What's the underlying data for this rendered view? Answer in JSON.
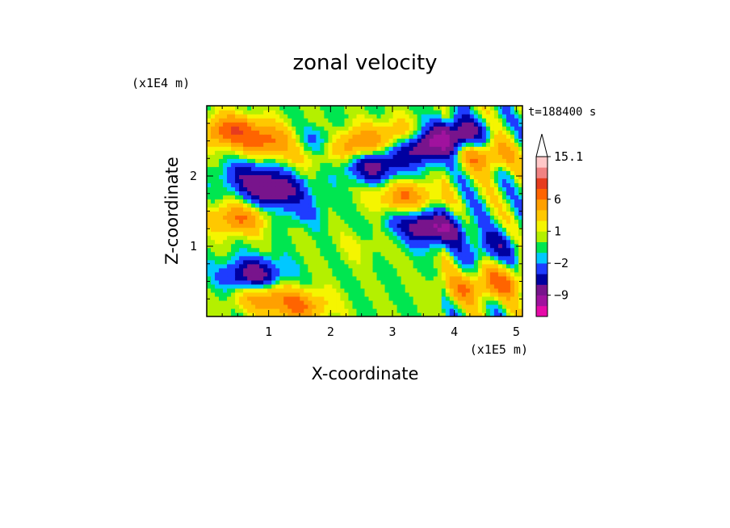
{
  "chart_data": {
    "type": "heatmap",
    "title": "zonal velocity",
    "xlabel": "X-coordinate",
    "ylabel": "Z-coordinate",
    "x_unit": "(x1E5 m)",
    "y_unit": "(x1E4 m)",
    "time_label": "t=188400 s",
    "xlim": [
      0,
      5.1
    ],
    "ylim": [
      0,
      3.0
    ],
    "x_ticks": [
      1,
      2,
      3,
      4,
      5
    ],
    "y_ticks": [
      1,
      2
    ],
    "colorbar": {
      "labels": [
        "15.1",
        "6",
        "1",
        "−2",
        "−9"
      ],
      "label_levels": [
        15.1,
        6,
        1,
        -2,
        -9
      ],
      "colors": [
        "#e60aa8",
        "#a0129e",
        "#78148c",
        "#0000a0",
        "#1e3cff",
        "#00c8ff",
        "#00e650",
        "#b4f000",
        "#f5f500",
        "#ffc800",
        "#ffa000",
        "#ff6400",
        "#e63c1e",
        "#f08282",
        "#ffc8c8"
      ],
      "extend": "max"
    },
    "fields": [
      {
        "cx": 0.4,
        "cy": 2.65,
        "value": 8
      },
      {
        "cx": 1.0,
        "cy": 2.5,
        "value": 6
      },
      {
        "cx": 1.65,
        "cy": 2.35,
        "value": 4
      },
      {
        "cx": 1.8,
        "cy": 2.45,
        "value": -6
      },
      {
        "cx": 2.35,
        "cy": 2.45,
        "value": 7
      },
      {
        "cx": 2.7,
        "cy": 2.15,
        "value": -7
      },
      {
        "cx": 3.1,
        "cy": 2.6,
        "value": 4
      },
      {
        "cx": 3.5,
        "cy": 2.4,
        "value": -8
      },
      {
        "cx": 4.0,
        "cy": 2.6,
        "value": -9
      },
      {
        "cx": 4.5,
        "cy": 2.3,
        "value": 6
      },
      {
        "cx": 1.1,
        "cy": 1.8,
        "value": -8
      },
      {
        "cx": 0.7,
        "cy": 2.0,
        "value": -5
      },
      {
        "cx": 0.5,
        "cy": 1.4,
        "value": 6
      },
      {
        "cx": 1.5,
        "cy": 1.5,
        "value": -2
      },
      {
        "cx": 3.2,
        "cy": 1.7,
        "value": 6
      },
      {
        "cx": 3.7,
        "cy": 1.25,
        "value": -8
      },
      {
        "cx": 3.3,
        "cy": 1.35,
        "value": -3
      },
      {
        "cx": 4.6,
        "cy": 1.0,
        "value": -4
      },
      {
        "cx": 2.5,
        "cy": 1.0,
        "value": 1
      },
      {
        "cx": 0.75,
        "cy": 0.6,
        "value": -8
      },
      {
        "cx": 0.9,
        "cy": 0.3,
        "value": 5
      },
      {
        "cx": 1.5,
        "cy": 0.15,
        "value": 6
      },
      {
        "cx": 4.2,
        "cy": 0.4,
        "value": 4
      },
      {
        "cx": 4.8,
        "cy": 0.5,
        "value": 5
      }
    ]
  }
}
